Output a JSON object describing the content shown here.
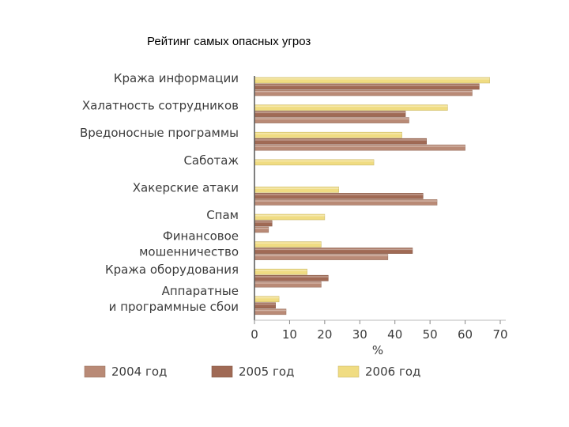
{
  "title": "Рейтинг самых опасных угроз",
  "chart_data": {
    "type": "bar",
    "orientation": "horizontal",
    "categories": [
      [
        "Кража информации"
      ],
      [
        "Халатность сотрудников"
      ],
      [
        "Вредоносные программы"
      ],
      [
        "Саботаж"
      ],
      [
        "Хакерские атаки"
      ],
      [
        "Спам"
      ],
      [
        "Финансовое",
        "мошенничество"
      ],
      [
        "Кража оборудования"
      ],
      [
        "Аппаратные",
        "и программные сбои"
      ]
    ],
    "series": [
      {
        "name": "2006 год",
        "color": "#f0dc82",
        "values": [
          67,
          55,
          42,
          34,
          24,
          20,
          19,
          15,
          7
        ]
      },
      {
        "name": "2005 год",
        "color": "#a06a55",
        "values": [
          64,
          43,
          49,
          0,
          48,
          5,
          45,
          21,
          6
        ]
      },
      {
        "name": "2004 год",
        "color": "#b98a76",
        "values": [
          62,
          44,
          60,
          0,
          52,
          4,
          38,
          19,
          9
        ]
      }
    ],
    "xlabel": "%",
    "xlim": [
      0,
      70
    ],
    "xticks": [
      0,
      10,
      20,
      30,
      40,
      50,
      60,
      70
    ],
    "legend": [
      {
        "label": "2004 год",
        "color": "#b98a76"
      },
      {
        "label": "2005 год",
        "color": "#a06a55"
      },
      {
        "label": "2006 год",
        "color": "#f0dc82"
      }
    ],
    "legend_position": "bottom",
    "grid": false
  }
}
